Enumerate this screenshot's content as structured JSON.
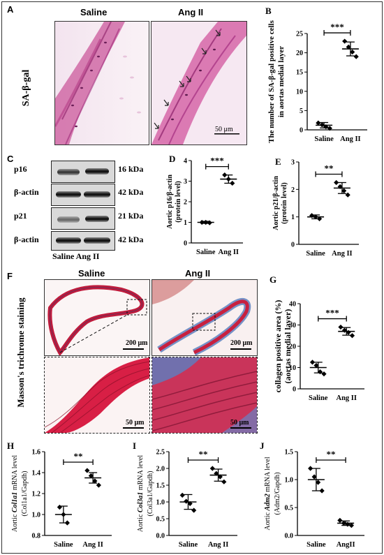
{
  "panels": {
    "A": {
      "letter": "A",
      "col_saline": "Saline",
      "col_angii": "Ang II",
      "row_label": "SA-β-gal",
      "scale_bar": "50 μm"
    },
    "C": {
      "letter": "C",
      "blots": [
        {
          "protein": "p16",
          "kda": "16 kDa"
        },
        {
          "protein": "β-actin",
          "kda": "42 kDa"
        },
        {
          "protein": "p21",
          "kda": "21 kDa"
        },
        {
          "protein": "β-actin",
          "kda": "42 kDa"
        }
      ],
      "lane_labels": "Saline Ang II"
    },
    "F": {
      "letter": "F",
      "col_saline": "Saline",
      "col_angii": "Ang II",
      "row_label": "Masson's trichrome staining",
      "scale_top_left": "200 μm",
      "scale_top_right": "200 μm",
      "scale_bottom_left": "50 μm",
      "scale_bottom_right": "50 μm"
    }
  },
  "chart_data": [
    {
      "id": "B",
      "type": "scatter",
      "ylabel": [
        "The number of SA-β-gal positive cells",
        "in aortas medial  layer"
      ],
      "categories": [
        "Saline",
        "Ang II"
      ],
      "ylim": [
        0,
        25
      ],
      "yticks": [
        0,
        5,
        10,
        15,
        20,
        25
      ],
      "ytick_labels": [
        "0",
        "5",
        "10",
        "15",
        "20",
        "25"
      ],
      "series": [
        {
          "category": "Saline",
          "points": [
            1.8,
            1.3,
            0.8,
            0.4
          ],
          "mean": 1.2,
          "sd": 0.7
        },
        {
          "category": "Ang II",
          "points": [
            23.0,
            21.5,
            20.2,
            19.0
          ],
          "mean": 21.0,
          "sd": 1.8
        }
      ],
      "significance": "***"
    },
    {
      "id": "D",
      "type": "scatter",
      "ylabel": [
        "Aortic p16/β-actin",
        "(protein level)"
      ],
      "categories": [
        "Saline",
        "Ang II"
      ],
      "ylim": [
        0,
        4
      ],
      "yticks": [
        0,
        1,
        2,
        3,
        4
      ],
      "ytick_labels": [
        "0",
        "1",
        "2",
        "3",
        "4"
      ],
      "series": [
        {
          "category": "Saline",
          "points": [
            1.0,
            1.0,
            0.98
          ],
          "mean": 1.0,
          "sd": 0.05
        },
        {
          "category": "Ang II",
          "points": [
            3.3,
            3.1,
            2.9
          ],
          "mean": 3.1,
          "sd": 0.2
        }
      ],
      "significance": "***"
    },
    {
      "id": "E",
      "type": "scatter",
      "ylabel": [
        "Aortic p21/β-actin",
        "(protein level)"
      ],
      "categories": [
        "Saline",
        "Ang II"
      ],
      "ylim": [
        0,
        3
      ],
      "yticks": [
        0,
        1,
        2,
        3
      ],
      "ytick_labels": [
        "0",
        "1",
        "2",
        "3"
      ],
      "series": [
        {
          "category": "Saline",
          "points": [
            1.05,
            1.0,
            0.93
          ],
          "mean": 1.0,
          "sd": 0.07
        },
        {
          "category": "Ang II",
          "points": [
            2.25,
            2.1,
            1.95,
            1.8
          ],
          "mean": 2.05,
          "sd": 0.2
        }
      ],
      "significance": "**"
    },
    {
      "id": "G",
      "type": "scatter",
      "ylabel": [
        "collagen positive area (%)",
        "(aortas medial  layer)"
      ],
      "categories": [
        "Saline",
        "Ang II"
      ],
      "ylim": [
        0,
        40
      ],
      "yticks": [
        0,
        10,
        20,
        30,
        40
      ],
      "ytick_labels": [
        "0",
        "10",
        "20",
        "30",
        "40"
      ],
      "series": [
        {
          "category": "Saline",
          "points": [
            12.5,
            11.0,
            8.0,
            7.0
          ],
          "mean": 10.0,
          "sd": 2.5
        },
        {
          "category": "Ang II",
          "points": [
            29.0,
            27.5,
            26.5,
            25.0
          ],
          "mean": 27.0,
          "sd": 1.8
        }
      ],
      "significance": "***"
    },
    {
      "id": "H",
      "type": "scatter",
      "ylabel_italic": "Col1a1",
      "ylabel_prefix": "Aortic ",
      "ylabel_suffix": " mRNA level",
      "ylabel2": "(Col1a1/Gapdh)",
      "categories": [
        "Saline",
        "Ang II"
      ],
      "ylim": [
        0.8,
        1.6
      ],
      "yticks": [
        0.8,
        1.0,
        1.2,
        1.4,
        1.6
      ],
      "ytick_labels": [
        "0.8",
        "1.0",
        "1.2",
        "1.4",
        "1.6"
      ],
      "series": [
        {
          "category": "Saline",
          "points": [
            1.07,
            1.0,
            0.92
          ],
          "mean": 1.0,
          "sd": 0.08
        },
        {
          "category": "Ang II",
          "points": [
            1.42,
            1.37,
            1.32,
            1.28
          ],
          "mean": 1.35,
          "sd": 0.05
        }
      ],
      "significance": "**"
    },
    {
      "id": "I",
      "type": "scatter",
      "ylabel_italic": "Col3a1",
      "ylabel_prefix": "Aortic ",
      "ylabel_suffix": " mRNA level",
      "ylabel2": "(Col3a1/Gapdh)",
      "categories": [
        "Saline",
        "Ang II"
      ],
      "ylim": [
        0.0,
        2.5
      ],
      "yticks": [
        0.0,
        0.5,
        1.0,
        1.5,
        2.0,
        2.5
      ],
      "ytick_labels": [
        "0.0",
        "0.5",
        "1.0",
        "1.5",
        "2.0",
        "2.5"
      ],
      "series": [
        {
          "category": "Saline",
          "points": [
            1.2,
            1.02,
            0.95,
            0.75
          ],
          "mean": 1.0,
          "sd": 0.22
        },
        {
          "category": "Ang II",
          "points": [
            2.0,
            1.85,
            1.75,
            1.6
          ],
          "mean": 1.8,
          "sd": 0.18
        }
      ],
      "significance": "**"
    },
    {
      "id": "J",
      "type": "scatter",
      "ylabel_italic": "Adm2",
      "ylabel_prefix": "Aortic ",
      "ylabel_suffix": " mRNA level",
      "ylabel2": "(Adm2/Gapdh)",
      "categories": [
        "Saline",
        "AngII"
      ],
      "ylim": [
        0.0,
        1.5
      ],
      "yticks": [
        0.0,
        0.5,
        1.0,
        1.5
      ],
      "ytick_labels": [
        "0.0",
        "0.5",
        "1.0",
        "1.5"
      ],
      "series": [
        {
          "category": "Saline",
          "points": [
            1.2,
            1.05,
            0.95,
            0.8
          ],
          "mean": 1.0,
          "sd": 0.2
        },
        {
          "category": "AngII",
          "points": [
            0.27,
            0.22,
            0.2,
            0.18
          ],
          "mean": 0.22,
          "sd": 0.04
        }
      ],
      "significance": "**"
    }
  ]
}
